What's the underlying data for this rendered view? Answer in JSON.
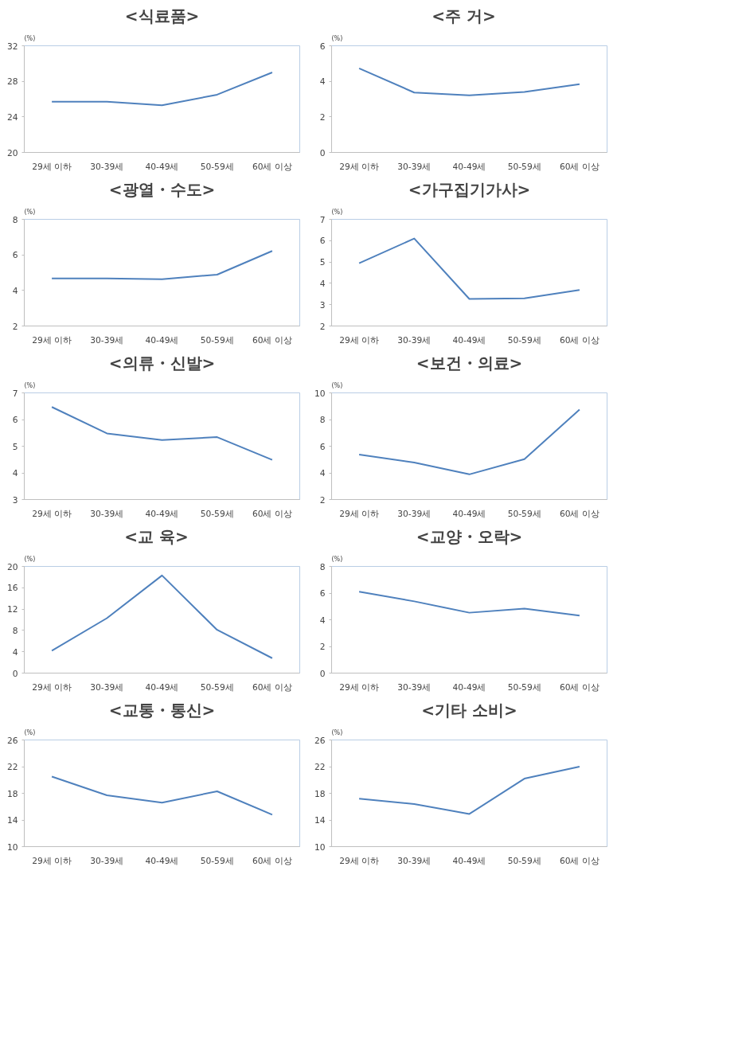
{
  "chart_data": [
    {
      "type": "line",
      "title": "<식료품>",
      "ylabel": "(%)",
      "categories": [
        "29세 이하",
        "30-39세",
        "40-49세",
        "50-59세",
        "60세 이상"
      ],
      "series": [
        {
          "color": "#4f81bd",
          "values": [
            25.7,
            25.7,
            25.3,
            26.5,
            29.0
          ]
        }
      ],
      "ylim": [
        20,
        32
      ],
      "yticks": [
        20,
        24,
        28,
        32
      ],
      "grid": false
    },
    {
      "type": "line",
      "title": "<주   거>",
      "ylabel": "(%)",
      "categories": [
        "29세 이하",
        "30-39세",
        "40-49세",
        "50-59세",
        "60세 이상"
      ],
      "series": [
        {
          "color": "#4f81bd",
          "values": [
            4.73,
            3.37,
            3.21,
            3.4,
            3.84
          ]
        }
      ],
      "ylim": [
        0,
        6
      ],
      "yticks": [
        0,
        2,
        4,
        6
      ],
      "grid": false
    },
    {
      "type": "line",
      "title": "<광열・수도>",
      "ylabel": "(%)",
      "categories": [
        "29세 이하",
        "30-39세",
        "40-49세",
        "50-59세",
        "60세 이상"
      ],
      "series": [
        {
          "color": "#4f81bd",
          "values": [
            4.67,
            4.67,
            4.63,
            4.89,
            6.22
          ]
        }
      ],
      "ylim": [
        2,
        8
      ],
      "yticks": [
        2,
        4,
        6,
        8
      ],
      "grid": false
    },
    {
      "type": "line",
      "title": "<가구집기가사>",
      "ylabel": "(%)",
      "categories": [
        "29세 이하",
        "30-39세",
        "40-49세",
        "50-59세",
        "60세 이상"
      ],
      "series": [
        {
          "color": "#4f81bd",
          "values": [
            4.94,
            6.1,
            3.27,
            3.3,
            3.69
          ]
        }
      ],
      "ylim": [
        2,
        7
      ],
      "yticks": [
        2,
        3,
        4,
        5,
        6,
        7
      ],
      "grid": false
    },
    {
      "type": "line",
      "title": "<의류・신발>",
      "ylabel": "(%)",
      "categories": [
        "29세 이하",
        "30-39세",
        "40-49세",
        "50-59세",
        "60세 이상"
      ],
      "series": [
        {
          "color": "#4f81bd",
          "values": [
            6.47,
            5.48,
            5.23,
            5.34,
            4.49
          ]
        }
      ],
      "ylim": [
        3,
        7
      ],
      "yticks": [
        3,
        4,
        5,
        6,
        7
      ],
      "grid": false
    },
    {
      "type": "line",
      "title": "<보건・의료>",
      "ylabel": "(%)",
      "categories": [
        "29세 이하",
        "30-39세",
        "40-49세",
        "50-59세",
        "60세 이상"
      ],
      "series": [
        {
          "color": "#4f81bd",
          "values": [
            5.37,
            4.78,
            3.89,
            5.03,
            8.74
          ]
        }
      ],
      "ylim": [
        2,
        10
      ],
      "yticks": [
        2,
        4,
        6,
        8,
        10
      ],
      "grid": false
    },
    {
      "type": "line",
      "title": "<교   육>",
      "ylabel": "(%)",
      "categories": [
        "29세 이하",
        "30-39세",
        "40-49세",
        "50-59세",
        "60세 이상"
      ],
      "series": [
        {
          "color": "#4f81bd",
          "values": [
            4.2,
            10.3,
            18.3,
            8.1,
            2.8
          ]
        }
      ],
      "ylim": [
        0,
        20
      ],
      "yticks": [
        0,
        4,
        8,
        12,
        16,
        20
      ],
      "grid": false
    },
    {
      "type": "line",
      "title": "<교양・오락>",
      "ylabel": "(%)",
      "categories": [
        "29세 이하",
        "30-39세",
        "40-49세",
        "50-59세",
        "60세 이상"
      ],
      "series": [
        {
          "color": "#4f81bd",
          "values": [
            6.1,
            5.38,
            4.53,
            4.83,
            4.32
          ]
        }
      ],
      "ylim": [
        0,
        8
      ],
      "yticks": [
        0,
        2,
        4,
        6,
        8
      ],
      "grid": false
    },
    {
      "type": "line",
      "title": "<교통・통신>",
      "ylabel": "(%)",
      "categories": [
        "29세 이하",
        "30-39세",
        "40-49세",
        "50-59세",
        "60세 이상"
      ],
      "series": [
        {
          "color": "#4f81bd",
          "values": [
            20.5,
            17.7,
            16.6,
            18.3,
            14.8
          ]
        }
      ],
      "ylim": [
        10,
        26
      ],
      "yticks": [
        10,
        14,
        18,
        22,
        26
      ],
      "grid": false
    },
    {
      "type": "line",
      "title": "<기타 소비>",
      "ylabel": "(%)",
      "categories": [
        "29세 이하",
        "30-39세",
        "40-49세",
        "50-59세",
        "60세 이상"
      ],
      "series": [
        {
          "color": "#4f81bd",
          "values": [
            17.2,
            16.4,
            14.9,
            20.2,
            22.0
          ]
        }
      ],
      "ylim": [
        10,
        26
      ],
      "yticks": [
        10,
        14,
        18,
        22,
        26
      ],
      "grid": false
    }
  ]
}
